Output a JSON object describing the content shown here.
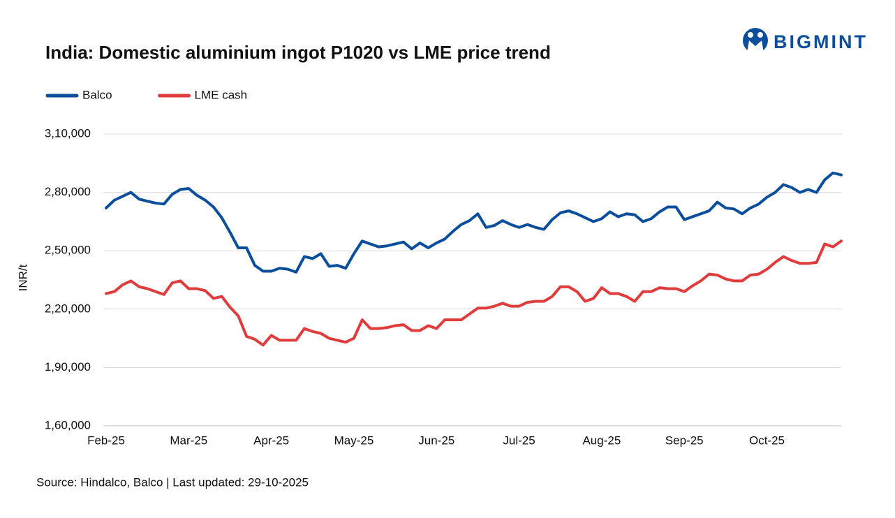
{
  "chart_data": {
    "type": "line",
    "title": "India: Domestic aluminium ingot P1020 vs LME price trend",
    "logo": "BIGMINT",
    "ylabel": "INR/t",
    "source": "Source: Hindalco, Balco | Last updated: 29-10-2025",
    "categories": [
      "Feb-25",
      null,
      null,
      null,
      null,
      null,
      null,
      null,
      null,
      null,
      "Mar-25",
      null,
      null,
      null,
      null,
      null,
      null,
      null,
      null,
      null,
      "Apr-25",
      null,
      null,
      null,
      null,
      null,
      null,
      null,
      null,
      null,
      "May-25",
      null,
      null,
      null,
      null,
      null,
      null,
      null,
      null,
      null,
      "Jun-25",
      null,
      null,
      null,
      null,
      null,
      null,
      null,
      null,
      null,
      "Jul-25",
      null,
      null,
      null,
      null,
      null,
      null,
      null,
      null,
      null,
      "Aug-25",
      null,
      null,
      null,
      null,
      null,
      null,
      null,
      null,
      null,
      "Sep-25",
      null,
      null,
      null,
      null,
      null,
      null,
      null,
      null,
      null,
      "Oct-25",
      null,
      null,
      null,
      null,
      null,
      null,
      null,
      null,
      null
    ],
    "series": [
      {
        "name": "Balco",
        "color": "#0b4f9c",
        "values": [
          272000,
          276000,
          278000,
          280000,
          276500,
          275500,
          274500,
          274000,
          279000,
          281500,
          282000,
          278500,
          276000,
          272500,
          267000,
          259500,
          251500,
          251500,
          242500,
          239500,
          239500,
          241000,
          240500,
          239000,
          247000,
          246000,
          248500,
          242000,
          242500,
          241000,
          248500,
          255000,
          253500,
          252000,
          252500,
          253500,
          254500,
          251000,
          254000,
          251500,
          254000,
          256000,
          260000,
          263500,
          265500,
          269000,
          262000,
          263000,
          265500,
          263500,
          262000,
          263500,
          262000,
          261000,
          266000,
          269500,
          270500,
          269000,
          267000,
          265000,
          266500,
          270000,
          267500,
          269000,
          268500,
          265000,
          266500,
          270000,
          272500,
          272500,
          266000,
          267500,
          269000,
          270500,
          275000,
          272000,
          271500,
          269000,
          272000,
          274000,
          277500,
          280000,
          284000,
          282500,
          280000,
          281500,
          280000,
          286500,
          290000,
          289000
        ]
      },
      {
        "name": "LME cash",
        "color": "#e03c3c",
        "values": [
          228000,
          229000,
          232500,
          234500,
          231500,
          230500,
          229000,
          227500,
          233500,
          234500,
          230500,
          230500,
          229500,
          225500,
          226500,
          221000,
          216500,
          206000,
          204500,
          201500,
          206500,
          204000,
          204000,
          204000,
          210000,
          208500,
          207500,
          205000,
          204000,
          203000,
          205000,
          214500,
          210000,
          210000,
          210500,
          211500,
          212000,
          209000,
          209000,
          211500,
          210000,
          214500,
          214500,
          214500,
          217500,
          220500,
          220500,
          221500,
          223000,
          221500,
          221500,
          223500,
          224000,
          224000,
          226500,
          231500,
          231500,
          229000,
          224000,
          225500,
          231000,
          228000,
          228000,
          226500,
          224000,
          229000,
          229000,
          231000,
          230500,
          230500,
          229000,
          232000,
          234500,
          238000,
          237500,
          235500,
          234500,
          234500,
          237500,
          238000,
          240500,
          244000,
          247000,
          245000,
          243500,
          243500,
          244000,
          253500,
          252000,
          255000
        ]
      }
    ],
    "ylim": [
      160000,
      310000
    ],
    "yticks": [
      {
        "value": 160000,
        "label": "1,60,000"
      },
      {
        "value": 190000,
        "label": "1,90,000"
      },
      {
        "value": 220000,
        "label": "2,20,000"
      },
      {
        "value": 250000,
        "label": "2,50,000"
      },
      {
        "value": 280000,
        "label": "2,80,000"
      },
      {
        "value": 310000,
        "label": "3,10,000"
      }
    ],
    "grid": true,
    "legend": "top-left"
  }
}
